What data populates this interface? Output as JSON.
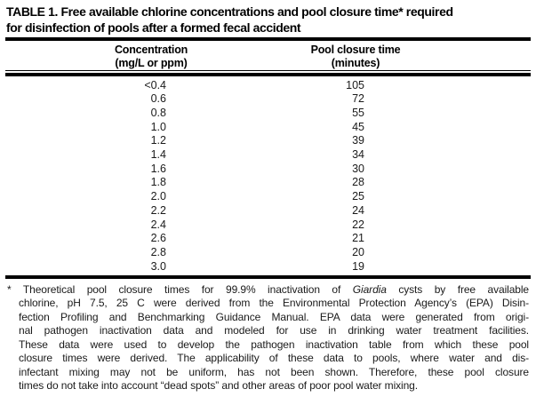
{
  "table": {
    "title_lines": [
      "TABLE 1. Free available chlorine concentrations and pool closure time* required",
      "for disinfection of pools after a formed fecal accident"
    ],
    "columns": [
      {
        "line1": "Concentration",
        "line2": "(mg/L or ppm)"
      },
      {
        "line1": "Pool closure time",
        "line2": "(minutes)"
      }
    ],
    "rows": [
      {
        "concentration": "<0.4",
        "closure_time": "105"
      },
      {
        "concentration": "0.6",
        "closure_time": "72"
      },
      {
        "concentration": "0.8",
        "closure_time": "55"
      },
      {
        "concentration": "1.0",
        "closure_time": "45"
      },
      {
        "concentration": "1.2",
        "closure_time": "39"
      },
      {
        "concentration": "1.4",
        "closure_time": "34"
      },
      {
        "concentration": "1.6",
        "closure_time": "30"
      },
      {
        "concentration": "1.8",
        "closure_time": "28"
      },
      {
        "concentration": "2.0",
        "closure_time": "25"
      },
      {
        "concentration": "2.2",
        "closure_time": "24"
      },
      {
        "concentration": "2.4",
        "closure_time": "22"
      },
      {
        "concentration": "2.6",
        "closure_time": "21"
      },
      {
        "concentration": "2.8",
        "closure_time": "20"
      },
      {
        "concentration": "3.0",
        "closure_time": "19"
      }
    ]
  },
  "footnote": {
    "lines": [
      [
        {
          "t": "* Theoretical pool closure times for 99.9% inactivation of "
        },
        {
          "t": "Giardia",
          "i": true
        },
        {
          "t": " cysts by free available"
        }
      ],
      [
        {
          "t": "chlorine, pH 7.5, 25 C were derived from the Environmental Protection Agency’s (EPA) Disin-"
        }
      ],
      [
        {
          "t": "fection Profiling and Benchmarking Guidance Manual. EPA data were generated from origi-"
        }
      ],
      [
        {
          "t": "nal pathogen inactivation data and modeled for use in drinking water treatment facilities."
        }
      ],
      [
        {
          "t": "These data were used to develop the pathogen inactivation table from which these pool"
        }
      ],
      [
        {
          "t": "closure times were derived. The applicability of these data to pools, where water and dis-"
        }
      ],
      [
        {
          "t": "infectant mixing may not be uniform, has not been shown. Therefore, these pool closure"
        }
      ],
      [
        {
          "t": "times do not take into account “dead spots” and other areas of poor pool water mixing."
        }
      ]
    ]
  },
  "colors": {
    "background": "#ffffff",
    "text": "#1a1a1a",
    "rule": "#000000"
  }
}
